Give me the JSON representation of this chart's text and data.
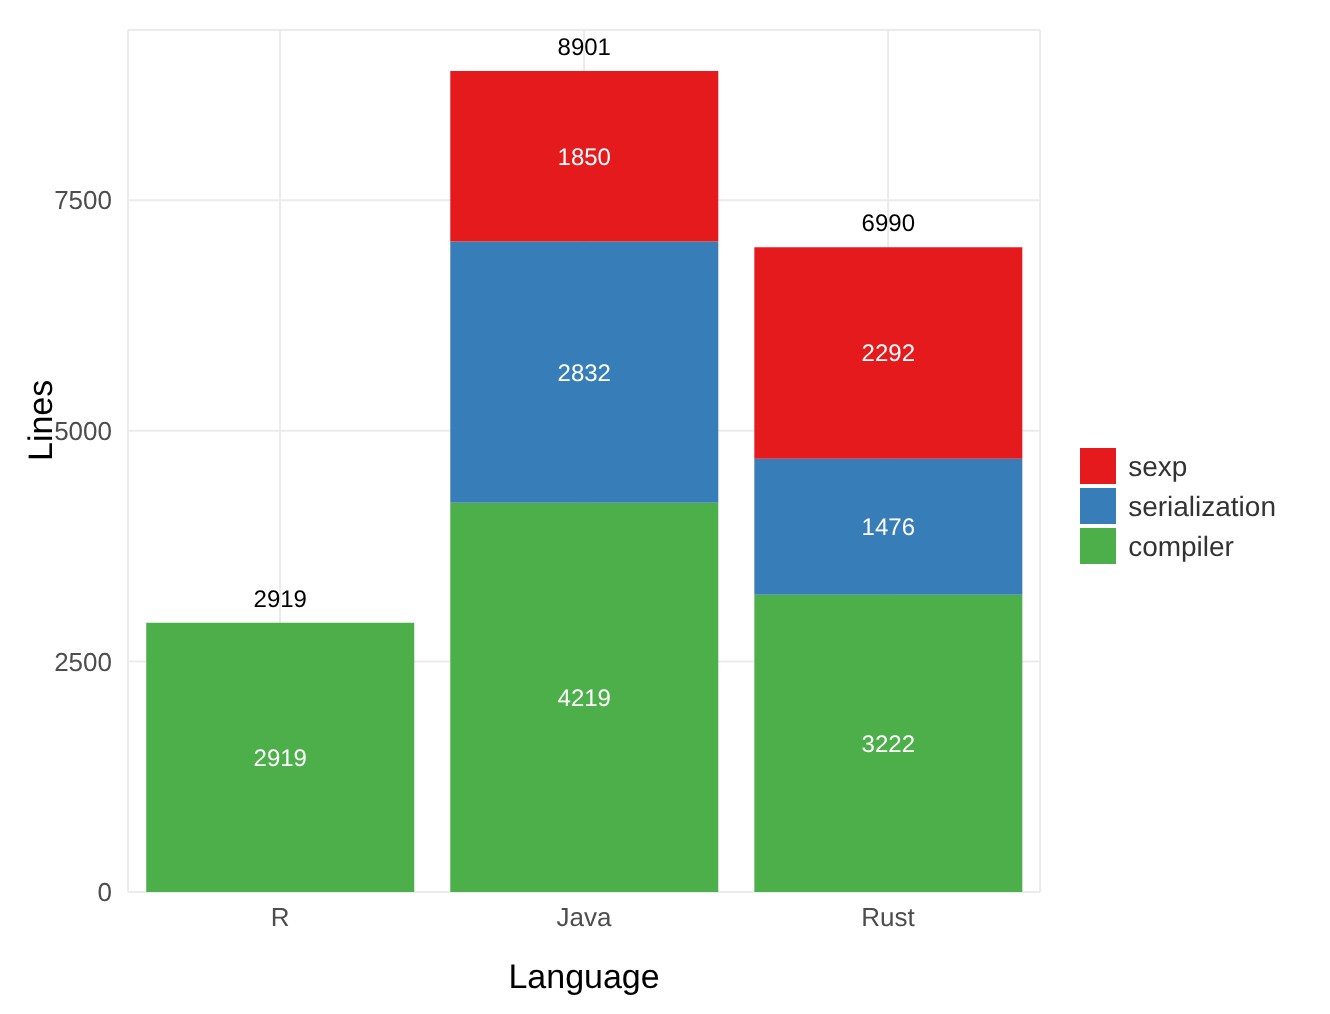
{
  "chart_data": {
    "type": "bar",
    "stacked": true,
    "xlabel": "Language",
    "ylabel": "Lines",
    "categories": [
      "R",
      "Java",
      "Rust"
    ],
    "series": [
      {
        "name": "compiler",
        "color": "#4daf4a",
        "values": [
          2919,
          4219,
          3222
        ]
      },
      {
        "name": "serialization",
        "color": "#377eb8",
        "values": [
          null,
          2832,
          1476
        ]
      },
      {
        "name": "sexp",
        "color": "#e41a1c",
        "values": [
          null,
          1850,
          2292
        ]
      }
    ],
    "totals": [
      "2919",
      "8901",
      "6990"
    ],
    "data_labels": true,
    "ylim": [
      0,
      9345
    ],
    "yticks": [
      0,
      2500,
      5000,
      7500
    ],
    "grid": true,
    "legend": "right"
  }
}
